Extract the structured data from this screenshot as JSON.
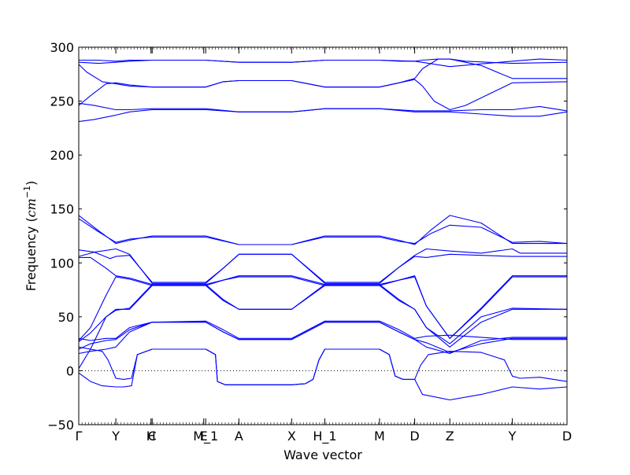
{
  "chart_data": {
    "type": "line",
    "title": "",
    "xlabel": "Wave vector",
    "ylabel": "Frequency ($cm^{-1}$)",
    "ylabel_parts": {
      "text": "Frequency (",
      "math": "cm",
      "sup": "−1",
      "close": ")"
    },
    "ylim": [
      -50,
      300
    ],
    "yticks": [
      -50,
      0,
      50,
      100,
      150,
      200,
      250,
      300
    ],
    "xlim": [
      0,
      12.5
    ],
    "xticks": [
      {
        "label": "Γ",
        "x": 0
      },
      {
        "label": "Y",
        "x": 0.95
      },
      {
        "label": "H",
        "x": 1.85
      },
      {
        "label": "C",
        "x": 1.88
      },
      {
        "label": "E",
        "x": 3.2
      },
      {
        "label": "M_1",
        "x": 3.25
      },
      {
        "label": "A",
        "x": 4.1
      },
      {
        "label": "X",
        "x": 5.45
      },
      {
        "label": "H_1",
        "x": 6.3
      },
      {
        "label": "M",
        "x": 7.7
      },
      {
        "label": "D",
        "x": 8.6
      },
      {
        "label": "Z",
        "x": 9.5
      },
      {
        "label": "Y",
        "x": 11.1
      },
      {
        "label": "D",
        "x": 12.5
      }
    ],
    "zero_line": true,
    "grid": false,
    "line_color": "#0000ff",
    "series": [
      {
        "x": [
          0,
          0.5,
          0.95,
          1.3,
          1.88,
          3.25,
          4.1,
          5.45,
          6.3,
          7.7,
          8.6,
          9.5,
          11.1,
          11.8,
          12.5
        ],
        "y": [
          288,
          288,
          287,
          288,
          288,
          288,
          286,
          286,
          288,
          288,
          287,
          282,
          287,
          289,
          288
        ]
      },
      {
        "x": [
          0,
          0.5,
          0.95,
          1.3,
          1.88,
          3.25,
          4.1,
          5.45,
          6.3,
          7.7,
          8.2,
          8.6,
          8.8,
          9.2,
          9.5,
          9.9,
          11.1,
          12.5
        ],
        "y": [
          286,
          285,
          286,
          287,
          288,
          288,
          286,
          286,
          288,
          288,
          287,
          287,
          288,
          289,
          289,
          287,
          285,
          286
        ]
      },
      {
        "x": [
          0,
          0.3,
          0.7,
          0.95,
          1.3,
          1.88,
          3.25,
          3.7,
          4.1,
          5.45,
          6.3,
          7.7,
          8.2,
          8.6,
          8.8,
          9.2,
          9.5,
          10.3,
          11.1,
          12.5
        ],
        "y": [
          246,
          255,
          266,
          267,
          265,
          263,
          263,
          268,
          269,
          269,
          263,
          263,
          267,
          271,
          280,
          289,
          289,
          283,
          271,
          271
        ]
      },
      {
        "x": [
          0,
          0.2,
          0.6,
          0.95,
          1.3,
          1.88,
          3.25,
          3.7,
          4.1,
          5.45,
          6.3,
          7.7,
          8.2,
          8.6,
          8.8,
          9.1,
          9.5,
          9.9,
          11.1,
          12.5
        ],
        "y": [
          284,
          277,
          268,
          266,
          264,
          263,
          263,
          268,
          269,
          269,
          263,
          263,
          267,
          270,
          264,
          250,
          242,
          246,
          267,
          268
        ]
      },
      {
        "x": [
          0,
          0.4,
          0.95,
          1.3,
          1.88,
          3.25,
          4.1,
          5.45,
          6.3,
          7.7,
          8.6,
          9.5,
          10.3,
          11.1,
          11.8,
          12.5
        ],
        "y": [
          248,
          246,
          242,
          242,
          243,
          243,
          240,
          240,
          243,
          243,
          241,
          241,
          242,
          242,
          245,
          241
        ]
      },
      {
        "x": [
          0,
          0.4,
          0.95,
          1.3,
          1.88,
          3.25,
          4.1,
          5.45,
          6.3,
          7.7,
          8.6,
          9.5,
          10.3,
          11.1,
          11.8,
          12.5
        ],
        "y": [
          231,
          233,
          237,
          240,
          242,
          242,
          240,
          240,
          243,
          243,
          240,
          240,
          238,
          236,
          236,
          240
        ]
      },
      {
        "x": [
          0,
          0.5,
          0.95,
          1.3,
          1.88,
          3.25,
          4.1,
          5.45,
          6.3,
          7.7,
          8.2,
          8.6,
          9.0,
          9.5,
          10.3,
          11.1,
          12.5
        ],
        "y": [
          144,
          130,
          118,
          121,
          125,
          125,
          117,
          117,
          125,
          125,
          121,
          117,
          130,
          144,
          137,
          118,
          118
        ]
      },
      {
        "x": [
          0,
          0.5,
          0.95,
          1.3,
          1.88,
          3.25,
          4.1,
          5.45,
          6.3,
          7.7,
          8.2,
          8.6,
          9.0,
          9.5,
          10.3,
          11.1,
          11.8,
          12.5
        ],
        "y": [
          141,
          129,
          119,
          122,
          124,
          124,
          117,
          117,
          124,
          124,
          120,
          118,
          127,
          135,
          133,
          119,
          120,
          118
        ]
      },
      {
        "x": [
          0,
          0.4,
          0.8,
          0.95,
          1.3,
          1.88,
          3.25,
          3.7,
          4.1,
          5.45,
          6.3,
          7.7,
          8.2,
          8.6,
          8.9,
          9.5,
          10.3,
          11.1,
          11.3,
          12.5
        ],
        "y": [
          112,
          110,
          104,
          106,
          107,
          82,
          82,
          95,
          108,
          108,
          82,
          82,
          96,
          107,
          113,
          111,
          109,
          113,
          109,
          109
        ]
      },
      {
        "x": [
          0,
          0.4,
          0.95,
          1.3,
          1.88,
          3.25,
          3.7,
          4.1,
          5.45,
          6.3,
          7.7,
          8.2,
          8.6,
          8.9,
          9.5,
          10.3,
          11.1,
          12.5
        ],
        "y": [
          106,
          110,
          113,
          108,
          81,
          81,
          95,
          108,
          108,
          81,
          81,
          96,
          106,
          105,
          108,
          107,
          106,
          106
        ]
      },
      {
        "x": [
          0,
          0.3,
          0.7,
          0.95,
          1.3,
          1.88,
          3.25,
          3.7,
          4.1,
          5.45,
          6.3,
          7.7,
          8.2,
          8.6,
          8.9,
          9.5,
          10.3,
          11.1,
          12.5
        ],
        "y": [
          105,
          105,
          95,
          88,
          86,
          80,
          80,
          84,
          88,
          88,
          80,
          80,
          84,
          88,
          60,
          30,
          58,
          88,
          88
        ]
      },
      {
        "x": [
          0,
          0.3,
          0.7,
          0.95,
          1.3,
          1.88,
          3.25,
          3.7,
          4.1,
          5.45,
          6.3,
          7.7,
          8.2,
          8.6,
          8.9,
          9.5,
          10.3,
          11.1,
          12.5
        ],
        "y": [
          28,
          40,
          70,
          87,
          85,
          79,
          79,
          84,
          87,
          87,
          79,
          79,
          84,
          87,
          60,
          30,
          57,
          87,
          87
        ]
      },
      {
        "x": [
          0,
          0.3,
          0.7,
          0.95,
          1.3,
          1.88,
          3.25,
          3.7,
          4.1,
          5.45,
          6.3,
          7.7,
          8.2,
          8.6,
          8.9,
          9.5,
          10.3,
          11.1,
          12.5
        ],
        "y": [
          27,
          35,
          50,
          57,
          57,
          79,
          79,
          65,
          57,
          57,
          79,
          79,
          65,
          57,
          40,
          22,
          45,
          57,
          57
        ]
      },
      {
        "x": [
          0,
          0.3,
          0.7,
          0.95,
          1.3,
          1.88,
          3.25,
          3.7,
          4.1,
          5.45,
          6.3,
          7.7,
          8.2,
          8.6,
          8.9,
          9.5,
          10.3,
          11.1,
          12.5
        ],
        "y": [
          2,
          20,
          50,
          56,
          58,
          80,
          80,
          66,
          57,
          57,
          80,
          80,
          66,
          57,
          40,
          25,
          50,
          58,
          57
        ]
      },
      {
        "x": [
          0,
          0.3,
          0.7,
          0.95,
          1.3,
          1.88,
          3.25,
          3.7,
          4.1,
          5.45,
          6.3,
          7.7,
          8.2,
          8.6,
          8.9,
          9.5,
          10.3,
          11.1,
          12.5
        ],
        "y": [
          30,
          28,
          30,
          30,
          40,
          45,
          46,
          38,
          30,
          30,
          46,
          46,
          38,
          30,
          32,
          33,
          31,
          29,
          29
        ]
      },
      {
        "x": [
          0,
          0.3,
          0.7,
          0.95,
          1.3,
          1.88,
          3.25,
          3.7,
          4.1,
          5.45,
          6.3,
          7.7,
          8.2,
          8.6,
          8.9,
          9.5,
          10.3,
          11.1,
          12.5
        ],
        "y": [
          20,
          25,
          28,
          29,
          38,
          45,
          45,
          36,
          29,
          29,
          45,
          45,
          36,
          29,
          26,
          17,
          25,
          30,
          30
        ]
      },
      {
        "x": [
          0,
          0.3,
          0.7,
          0.95,
          1.3,
          1.88,
          3.25,
          3.7,
          4.1,
          5.45,
          6.3,
          7.7,
          8.2,
          8.6,
          8.9,
          9.5,
          10.3,
          11.1,
          12.5
        ],
        "y": [
          16,
          18,
          20,
          22,
          36,
          45,
          45,
          36,
          29,
          29,
          45,
          45,
          36,
          29,
          22,
          16,
          28,
          31,
          31
        ]
      },
      {
        "x": [
          0,
          0.6,
          0.75,
          0.95,
          1.15,
          1.35,
          1.5,
          1.88,
          3.25,
          3.5,
          3.55,
          3.75,
          4.1,
          5.45,
          5.8,
          6.0,
          6.15,
          6.3,
          7.7,
          7.95,
          8.1,
          8.3,
          8.6,
          8.75,
          8.95,
          9.5,
          10.3,
          10.9,
          11.1,
          11.3,
          11.8,
          12.5
        ],
        "y": [
          22,
          18,
          10,
          -7,
          -8,
          -7,
          15,
          20,
          20,
          15,
          -10,
          -13,
          -13,
          -13,
          -12,
          -8,
          10,
          20,
          20,
          15,
          -5,
          -8,
          -8,
          5,
          15,
          18,
          17,
          10,
          -5,
          -7,
          -6,
          -10
        ]
      },
      {
        "x": [
          0,
          0.3,
          0.6,
          0.95,
          1.15,
          1.35,
          1.5,
          1.88,
          3.25,
          3.5,
          3.55,
          3.75,
          4.1,
          5.45,
          5.8,
          6.0,
          6.15,
          6.3,
          7.7,
          7.95,
          8.1,
          8.3,
          8.6,
          8.8,
          9.5,
          10.3,
          11.1,
          11.8,
          12.5
        ],
        "y": [
          -2,
          -10,
          -14,
          -15,
          -15,
          -14,
          15,
          20,
          20,
          15,
          -10,
          -13,
          -13,
          -13,
          -12,
          -8,
          10,
          20,
          20,
          15,
          -5,
          -8,
          -8,
          -22,
          -27,
          -22,
          -15,
          -17,
          -15
        ]
      }
    ]
  }
}
